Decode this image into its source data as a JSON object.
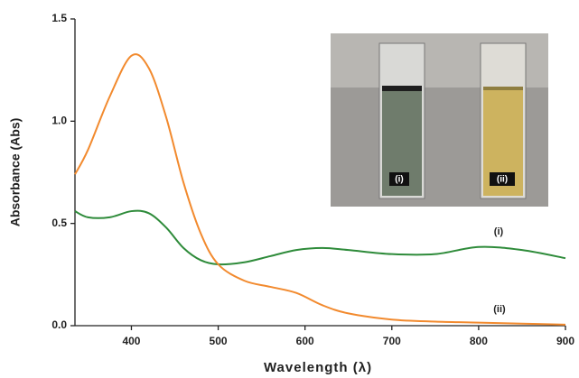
{
  "chart_data": {
    "type": "line",
    "xlabel": "Wavelength (λ)",
    "ylabel": "Absorbance (Abs)",
    "x": [
      335,
      350,
      375,
      400,
      420,
      440,
      460,
      480,
      500,
      530,
      560,
      590,
      620,
      650,
      700,
      750,
      800,
      850,
      900
    ],
    "series": [
      {
        "name": "(i)",
        "color": "#2e8b3a",
        "values": [
          0.56,
          0.53,
          0.53,
          0.56,
          0.55,
          0.48,
          0.38,
          0.32,
          0.3,
          0.31,
          0.34,
          0.37,
          0.38,
          0.37,
          0.35,
          0.35,
          0.385,
          0.37,
          0.33
        ]
      },
      {
        "name": "(ii)",
        "color": "#f28a2e",
        "values": [
          0.74,
          0.86,
          1.12,
          1.32,
          1.26,
          1.02,
          0.7,
          0.45,
          0.3,
          0.22,
          0.19,
          0.16,
          0.1,
          0.06,
          0.03,
          0.02,
          0.015,
          0.01,
          0.005
        ]
      }
    ],
    "xlim": [
      335,
      900
    ],
    "xticks": [
      400,
      500,
      600,
      700,
      800,
      900
    ],
    "ylim": [
      0,
      1.5
    ],
    "yticks": [
      {
        "value": 0,
        "label": "0.0"
      },
      {
        "value": 0.5,
        "label": "0.5"
      },
      {
        "value": 1,
        "label": "1.0"
      },
      {
        "value": 1.5,
        "label": "1.5"
      }
    ]
  }
}
